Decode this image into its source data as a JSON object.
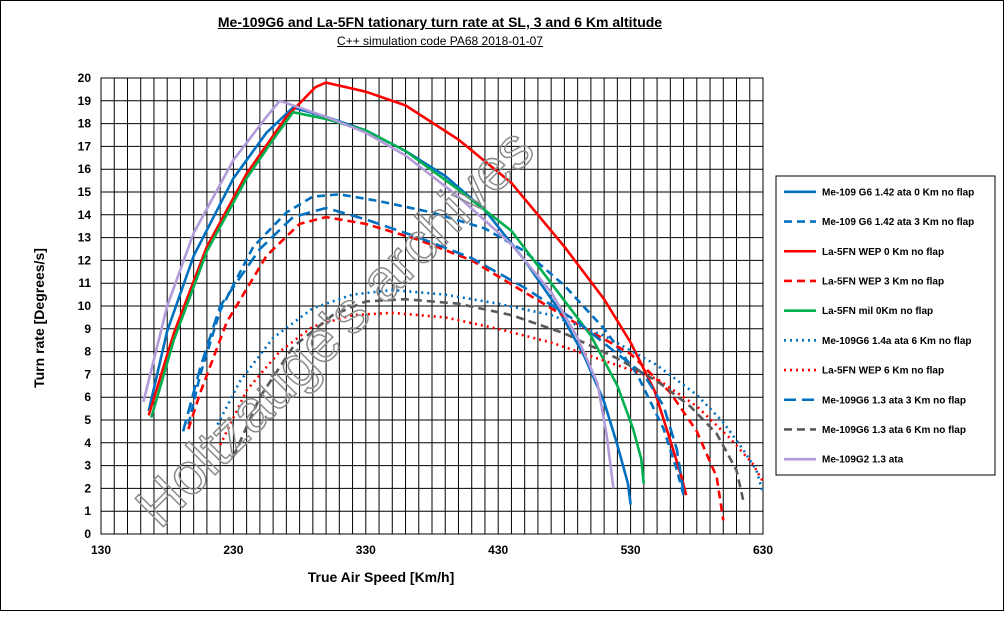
{
  "chart_data": {
    "type": "line",
    "title": "Me-109G6 and La-5FN tationary turn rate at SL, 3 and 6 Km altitude",
    "subtitle": "C++ simulation code PA68 2018-01-07",
    "xlabel": "True Air Speed [Km/h]",
    "ylabel": "Turn rate [Degrees/s]",
    "xlim": [
      130,
      630
    ],
    "ylim": [
      0,
      20
    ],
    "x_ticks": [
      "130",
      "230",
      "330",
      "430",
      "530",
      "630"
    ],
    "y_ticks": [
      "0",
      "1",
      "2",
      "3",
      "4",
      "5",
      "6",
      "7",
      "8",
      "9",
      "10",
      "11",
      "12",
      "13",
      "14",
      "15",
      "16",
      "17",
      "18",
      "19",
      "20"
    ],
    "grid": true,
    "legend_position": "right",
    "watermark": "Holtzauge's archives",
    "series": [
      {
        "name": "Me-109 G6 1.42 ata 0 Km no flap",
        "color": "#0070C0",
        "dash": "solid",
        "points": [
          [
            166,
            5.4
          ],
          [
            180,
            8.9
          ],
          [
            200,
            12.2
          ],
          [
            230,
            15.6
          ],
          [
            255,
            17.6
          ],
          [
            275,
            18.7
          ],
          [
            300,
            18.3
          ],
          [
            330,
            17.7
          ],
          [
            360,
            16.8
          ],
          [
            390,
            15.7
          ],
          [
            420,
            14.2
          ],
          [
            450,
            12.0
          ],
          [
            475,
            9.9
          ],
          [
            495,
            7.8
          ],
          [
            510,
            5.8
          ],
          [
            520,
            3.9
          ],
          [
            528,
            2.2
          ],
          [
            530,
            1.3
          ]
        ]
      },
      {
        "name": "Me-109 G6 1.42 ata 3 Km no flap",
        "color": "#0070C0",
        "dash": "8,5",
        "points": [
          [
            196,
            4.8
          ],
          [
            205,
            7.0
          ],
          [
            220,
            9.8
          ],
          [
            245,
            12.6
          ],
          [
            270,
            14.1
          ],
          [
            290,
            14.8
          ],
          [
            310,
            14.9
          ],
          [
            340,
            14.6
          ],
          [
            380,
            14.1
          ],
          [
            420,
            13.4
          ],
          [
            450,
            12.4
          ],
          [
            480,
            10.9
          ],
          [
            510,
            9.0
          ],
          [
            535,
            7.0
          ],
          [
            555,
            4.6
          ],
          [
            565,
            2.8
          ],
          [
            570,
            1.7
          ]
        ]
      },
      {
        "name": "La-5FN WEP 0 Km no flap",
        "color": "#FF0000",
        "dash": "solid",
        "points": [
          [
            166,
            5.2
          ],
          [
            185,
            8.8
          ],
          [
            210,
            12.6
          ],
          [
            240,
            15.8
          ],
          [
            270,
            18.3
          ],
          [
            292,
            19.6
          ],
          [
            300,
            19.8
          ],
          [
            330,
            19.4
          ],
          [
            360,
            18.8
          ],
          [
            400,
            17.3
          ],
          [
            440,
            15.4
          ],
          [
            480,
            12.6
          ],
          [
            510,
            10.3
          ],
          [
            530,
            8.4
          ],
          [
            548,
            6.3
          ],
          [
            560,
            4.1
          ],
          [
            568,
            2.6
          ],
          [
            572,
            1.7
          ]
        ]
      },
      {
        "name": "La-5FN WEP 3 Km no flap",
        "color": "#FF0000",
        "dash": "8,5",
        "points": [
          [
            196,
            4.6
          ],
          [
            205,
            6.2
          ],
          [
            225,
            9.3
          ],
          [
            255,
            12.2
          ],
          [
            280,
            13.6
          ],
          [
            300,
            13.9
          ],
          [
            330,
            13.6
          ],
          [
            370,
            12.9
          ],
          [
            410,
            12.0
          ],
          [
            450,
            10.6
          ],
          [
            490,
            9.2
          ],
          [
            530,
            7.9
          ],
          [
            560,
            6.2
          ],
          [
            580,
            4.5
          ],
          [
            595,
            2.5
          ],
          [
            600,
            0.6
          ]
        ]
      },
      {
        "name": "La-5FN mil 0Km no flap",
        "color": "#00B050",
        "dash": "solid",
        "points": [
          [
            168,
            5.1
          ],
          [
            185,
            8.5
          ],
          [
            210,
            12.4
          ],
          [
            240,
            15.6
          ],
          [
            260,
            17.3
          ],
          [
            275,
            18.5
          ],
          [
            300,
            18.2
          ],
          [
            330,
            17.7
          ],
          [
            360,
            16.8
          ],
          [
            400,
            15.1
          ],
          [
            440,
            13.3
          ],
          [
            470,
            11.0
          ],
          [
            500,
            8.7
          ],
          [
            520,
            6.5
          ],
          [
            532,
            4.6
          ],
          [
            538,
            3.3
          ],
          [
            540,
            2.2
          ]
        ]
      },
      {
        "name": "Me-109G6 1.4a ata 6 Km no flap",
        "color": "#0070C0",
        "dash": "2,4",
        "points": [
          [
            218,
            4.8
          ],
          [
            235,
            6.7
          ],
          [
            260,
            8.6
          ],
          [
            290,
            9.9
          ],
          [
            320,
            10.5
          ],
          [
            350,
            10.7
          ],
          [
            390,
            10.5
          ],
          [
            430,
            10.1
          ],
          [
            470,
            9.6
          ],
          [
            510,
            8.7
          ],
          [
            550,
            7.4
          ],
          [
            580,
            6.1
          ],
          [
            600,
            4.9
          ],
          [
            615,
            3.7
          ],
          [
            625,
            2.8
          ],
          [
            630,
            1.8
          ]
        ]
      },
      {
        "name": "La-5FN WEP 6 Km no flap",
        "color": "#FF0000",
        "dash": "2,4",
        "points": [
          [
            220,
            3.9
          ],
          [
            240,
            6.3
          ],
          [
            265,
            8.0
          ],
          [
            290,
            9.1
          ],
          [
            320,
            9.6
          ],
          [
            350,
            9.7
          ],
          [
            390,
            9.5
          ],
          [
            430,
            9.0
          ],
          [
            470,
            8.4
          ],
          [
            510,
            7.6
          ],
          [
            550,
            6.8
          ],
          [
            580,
            5.6
          ],
          [
            605,
            4.2
          ],
          [
            622,
            3.1
          ],
          [
            630,
            2.3
          ]
        ]
      },
      {
        "name": "Me-109G6 1.3 ata 3 Km no flap",
        "color": "#0070C0",
        "dash": "12,6",
        "points": [
          [
            192,
            4.5
          ],
          [
            205,
            7.3
          ],
          [
            220,
            10.0
          ],
          [
            250,
            12.5
          ],
          [
            275,
            13.9
          ],
          [
            300,
            14.3
          ],
          [
            330,
            13.8
          ],
          [
            370,
            13.0
          ],
          [
            410,
            12.1
          ],
          [
            450,
            10.8
          ],
          [
            490,
            9.3
          ],
          [
            520,
            7.9
          ],
          [
            540,
            7.0
          ],
          [
            555,
            5.6
          ],
          [
            565,
            3.7
          ],
          [
            570,
            1.8
          ]
        ]
      },
      {
        "name": "Me-109G6 1.3 ata 6 Km no flap",
        "color": "#595959",
        "dash": "8,5",
        "points": [
          [
            230,
            3.4
          ],
          [
            250,
            6.0
          ],
          [
            275,
            8.2
          ],
          [
            305,
            9.6
          ],
          [
            330,
            10.2
          ],
          [
            360,
            10.3
          ],
          [
            400,
            10.1
          ],
          [
            440,
            9.6
          ],
          [
            480,
            8.8
          ],
          [
            520,
            7.7
          ],
          [
            550,
            6.7
          ],
          [
            575,
            5.6
          ],
          [
            595,
            4.4
          ],
          [
            610,
            2.8
          ],
          [
            615,
            1.5
          ]
        ]
      },
      {
        "name": "Me-109G2 1.3 ata",
        "color": "#B19CD9",
        "dash": "solid",
        "points": [
          [
            162,
            5.8
          ],
          [
            180,
            10.0
          ],
          [
            200,
            13.2
          ],
          [
            230,
            16.4
          ],
          [
            255,
            18.3
          ],
          [
            265,
            19.0
          ],
          [
            300,
            18.3
          ],
          [
            330,
            17.6
          ],
          [
            360,
            16.6
          ],
          [
            400,
            14.8
          ],
          [
            440,
            12.7
          ],
          [
            470,
            10.6
          ],
          [
            490,
            8.6
          ],
          [
            505,
            6.6
          ],
          [
            512,
            4.3
          ],
          [
            517,
            2.0
          ]
        ]
      }
    ]
  }
}
